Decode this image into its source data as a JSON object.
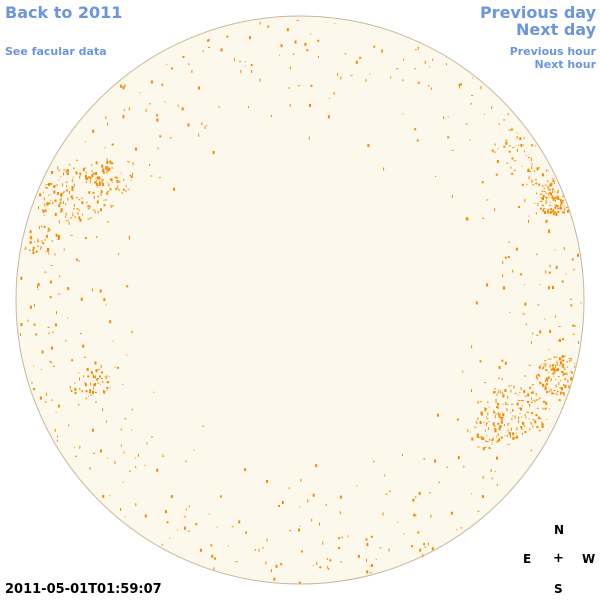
{
  "navigation": {
    "back_label": "Back to 2011",
    "facular_label": "See facular data",
    "previous_day_label": "Previous day",
    "next_day_label": "Next day",
    "previous_hour_label": "Previous hour",
    "next_hour_label": "Next hour"
  },
  "compass": {
    "north": "N",
    "south": "S",
    "east": "E",
    "west": "W",
    "center": "+"
  },
  "timestamp": "2011-05-01T01:59:07",
  "colors": {
    "link": "#6b95dd",
    "disk_fill": "#fdf8ec",
    "disk_outline": "#c7b89a",
    "feature": "#f08c00"
  },
  "icons": [
    "solar-disk-image"
  ]
}
